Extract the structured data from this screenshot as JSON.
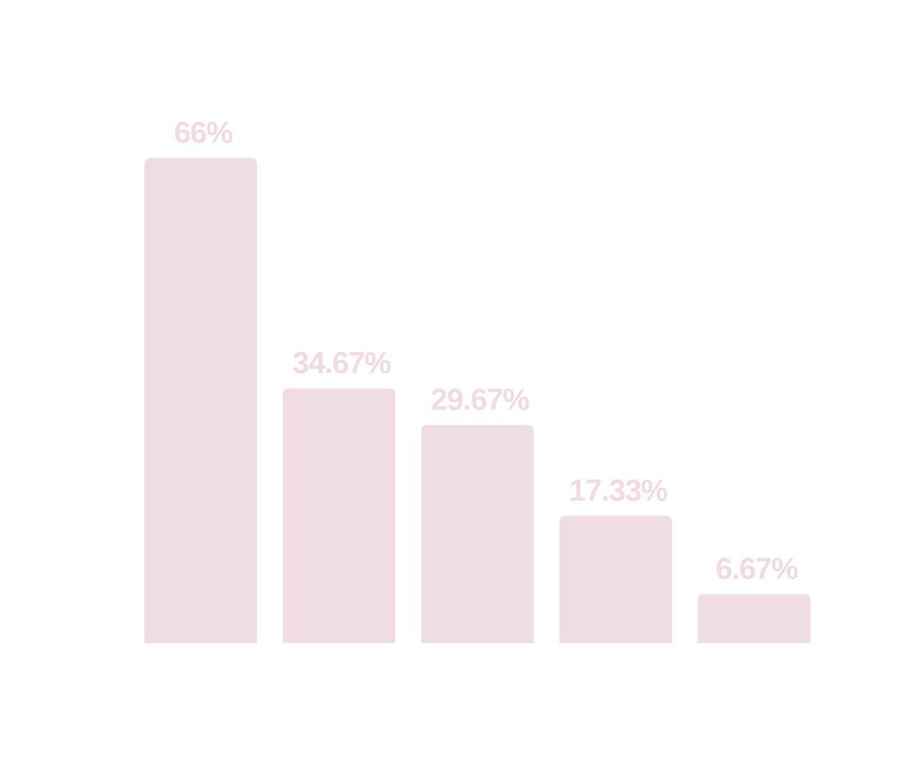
{
  "chart_data": {
    "type": "bar",
    "categories": [
      null,
      null,
      null,
      null,
      null
    ],
    "values": [
      66,
      34.67,
      29.67,
      17.33,
      6.67
    ],
    "value_labels": [
      "66%",
      "34.67%",
      "29.67%",
      "17.33%",
      "6.67%"
    ],
    "color": "#f0dce3"
  }
}
